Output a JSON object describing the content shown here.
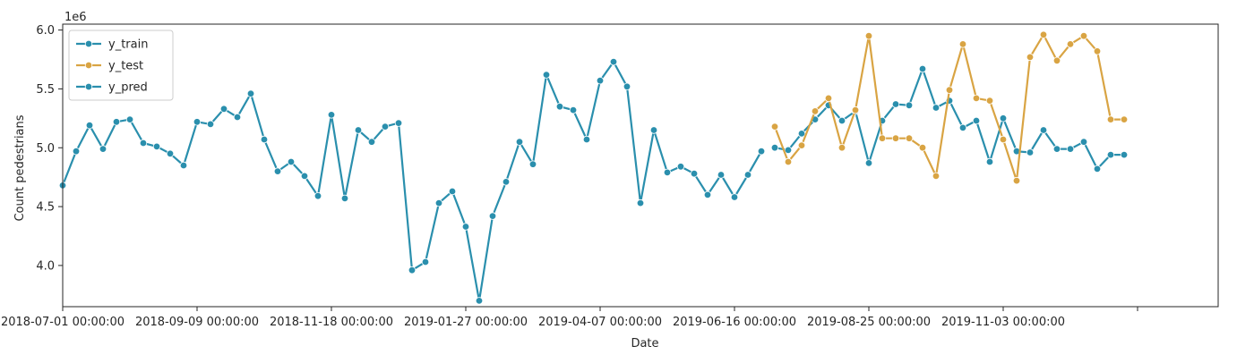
{
  "chart_data": {
    "type": "line",
    "title": "",
    "xlabel": "Date",
    "ylabel": "Count pedestrians",
    "y_offset_label": "1e6",
    "ylim": [
      3.65,
      6.05
    ],
    "y_scale_factor": 1000000,
    "yticks": [
      4.0,
      4.5,
      5.0,
      5.5,
      6.0
    ],
    "ytick_labels": [
      "4.0",
      "4.5",
      "5.0",
      "5.5",
      "6.0"
    ],
    "x_start": "2018-07-01",
    "x_end": "2020-02-23",
    "xticks": [
      "2018-07-01",
      "2018-09-09",
      "2018-11-18",
      "2019-01-27",
      "2019-04-07",
      "2019-06-16",
      "2019-08-25",
      "2019-11-03",
      "2020-01-12"
    ],
    "xtick_labels": [
      "2018-07-01 00:00:00",
      "2018-09-09 00:00:00",
      "2018-11-18 00:00:00",
      "2019-01-27 00:00:00",
      "2019-04-07 00:00:00",
      "2019-06-16 00:00:00",
      "2019-08-25 00:00:00",
      "2019-11-03 00:00:00",
      ""
    ],
    "legend_position": "upper-left",
    "series": [
      {
        "name": "y_train",
        "color": "#2a8fad",
        "x": [
          "2018-07-01",
          "2018-07-08",
          "2018-07-15",
          "2018-07-22",
          "2018-07-29",
          "2018-08-05",
          "2018-08-12",
          "2018-08-19",
          "2018-08-26",
          "2018-09-02",
          "2018-09-09",
          "2018-09-16",
          "2018-09-23",
          "2018-09-30",
          "2018-10-07",
          "2018-10-14",
          "2018-10-21",
          "2018-10-28",
          "2018-11-04",
          "2018-11-11",
          "2018-11-18",
          "2018-11-25",
          "2018-12-02",
          "2018-12-09",
          "2018-12-16",
          "2018-12-23",
          "2018-12-30",
          "2019-01-06",
          "2019-01-13",
          "2019-01-20",
          "2019-01-27",
          "2019-02-03",
          "2019-02-10",
          "2019-02-17",
          "2019-02-24",
          "2019-03-03",
          "2019-03-10",
          "2019-03-17",
          "2019-03-24",
          "2019-03-31",
          "2019-04-07",
          "2019-04-14",
          "2019-04-21",
          "2019-04-28",
          "2019-05-05",
          "2019-05-12",
          "2019-05-19",
          "2019-05-26",
          "2019-06-02",
          "2019-06-09",
          "2019-06-16",
          "2019-06-23",
          "2019-06-30"
        ],
        "values": [
          4.68,
          4.97,
          5.19,
          4.99,
          5.22,
          5.24,
          5.04,
          5.01,
          4.95,
          4.85,
          5.22,
          5.2,
          5.33,
          5.26,
          5.46,
          5.07,
          4.8,
          4.88,
          4.76,
          4.59,
          5.28,
          4.57,
          5.15,
          5.05,
          5.18,
          5.21,
          3.96,
          4.03,
          4.53,
          4.63,
          4.33,
          3.7,
          4.42,
          4.71,
          5.05,
          4.86,
          5.62,
          5.35,
          5.32,
          5.07,
          5.57,
          5.73,
          5.52,
          4.53,
          5.15,
          4.79,
          4.84,
          4.78,
          4.6,
          4.77,
          4.58,
          4.77,
          4.97
        ]
      },
      {
        "name": "y_test",
        "color": "#d9a443",
        "x": [
          "2019-07-07",
          "2019-07-14",
          "2019-07-21",
          "2019-07-28",
          "2019-08-04",
          "2019-08-11",
          "2019-08-18",
          "2019-08-25",
          "2019-09-01",
          "2019-09-08",
          "2019-09-15",
          "2019-09-22",
          "2019-09-29",
          "2019-10-06",
          "2019-10-13",
          "2019-10-20",
          "2019-10-27",
          "2019-11-03",
          "2019-11-10",
          "2019-11-17",
          "2019-11-24",
          "2019-12-01",
          "2019-12-08",
          "2019-12-15",
          "2019-12-22",
          "2019-12-29",
          "2020-01-05"
        ],
        "values": [
          5.18,
          4.88,
          5.02,
          5.31,
          5.42,
          5.0,
          5.32,
          5.95,
          5.08,
          5.08,
          5.08,
          5.0,
          4.76,
          5.49,
          5.88,
          5.42,
          5.4,
          5.07,
          4.72,
          5.77,
          5.96,
          5.74,
          5.88,
          5.95,
          5.82,
          5.24,
          5.24
        ]
      },
      {
        "name": "y_pred",
        "color": "#2a8fad",
        "x": [
          "2019-07-07",
          "2019-07-14",
          "2019-07-21",
          "2019-07-28",
          "2019-08-04",
          "2019-08-11",
          "2019-08-18",
          "2019-08-25",
          "2019-09-01",
          "2019-09-08",
          "2019-09-15",
          "2019-09-22",
          "2019-09-29",
          "2019-10-06",
          "2019-10-13",
          "2019-10-20",
          "2019-10-27",
          "2019-11-03",
          "2019-11-10",
          "2019-11-17",
          "2019-11-24",
          "2019-12-01",
          "2019-12-08",
          "2019-12-15",
          "2019-12-22",
          "2019-12-29",
          "2020-01-05"
        ],
        "values": [
          5.0,
          4.98,
          5.12,
          5.24,
          5.36,
          5.23,
          5.31,
          4.87,
          5.23,
          5.37,
          5.36,
          5.67,
          5.34,
          5.4,
          5.17,
          5.23,
          4.88,
          5.25,
          4.97,
          4.96,
          5.15,
          4.99,
          4.99,
          5.05,
          4.82,
          4.94,
          4.94
        ]
      }
    ]
  }
}
